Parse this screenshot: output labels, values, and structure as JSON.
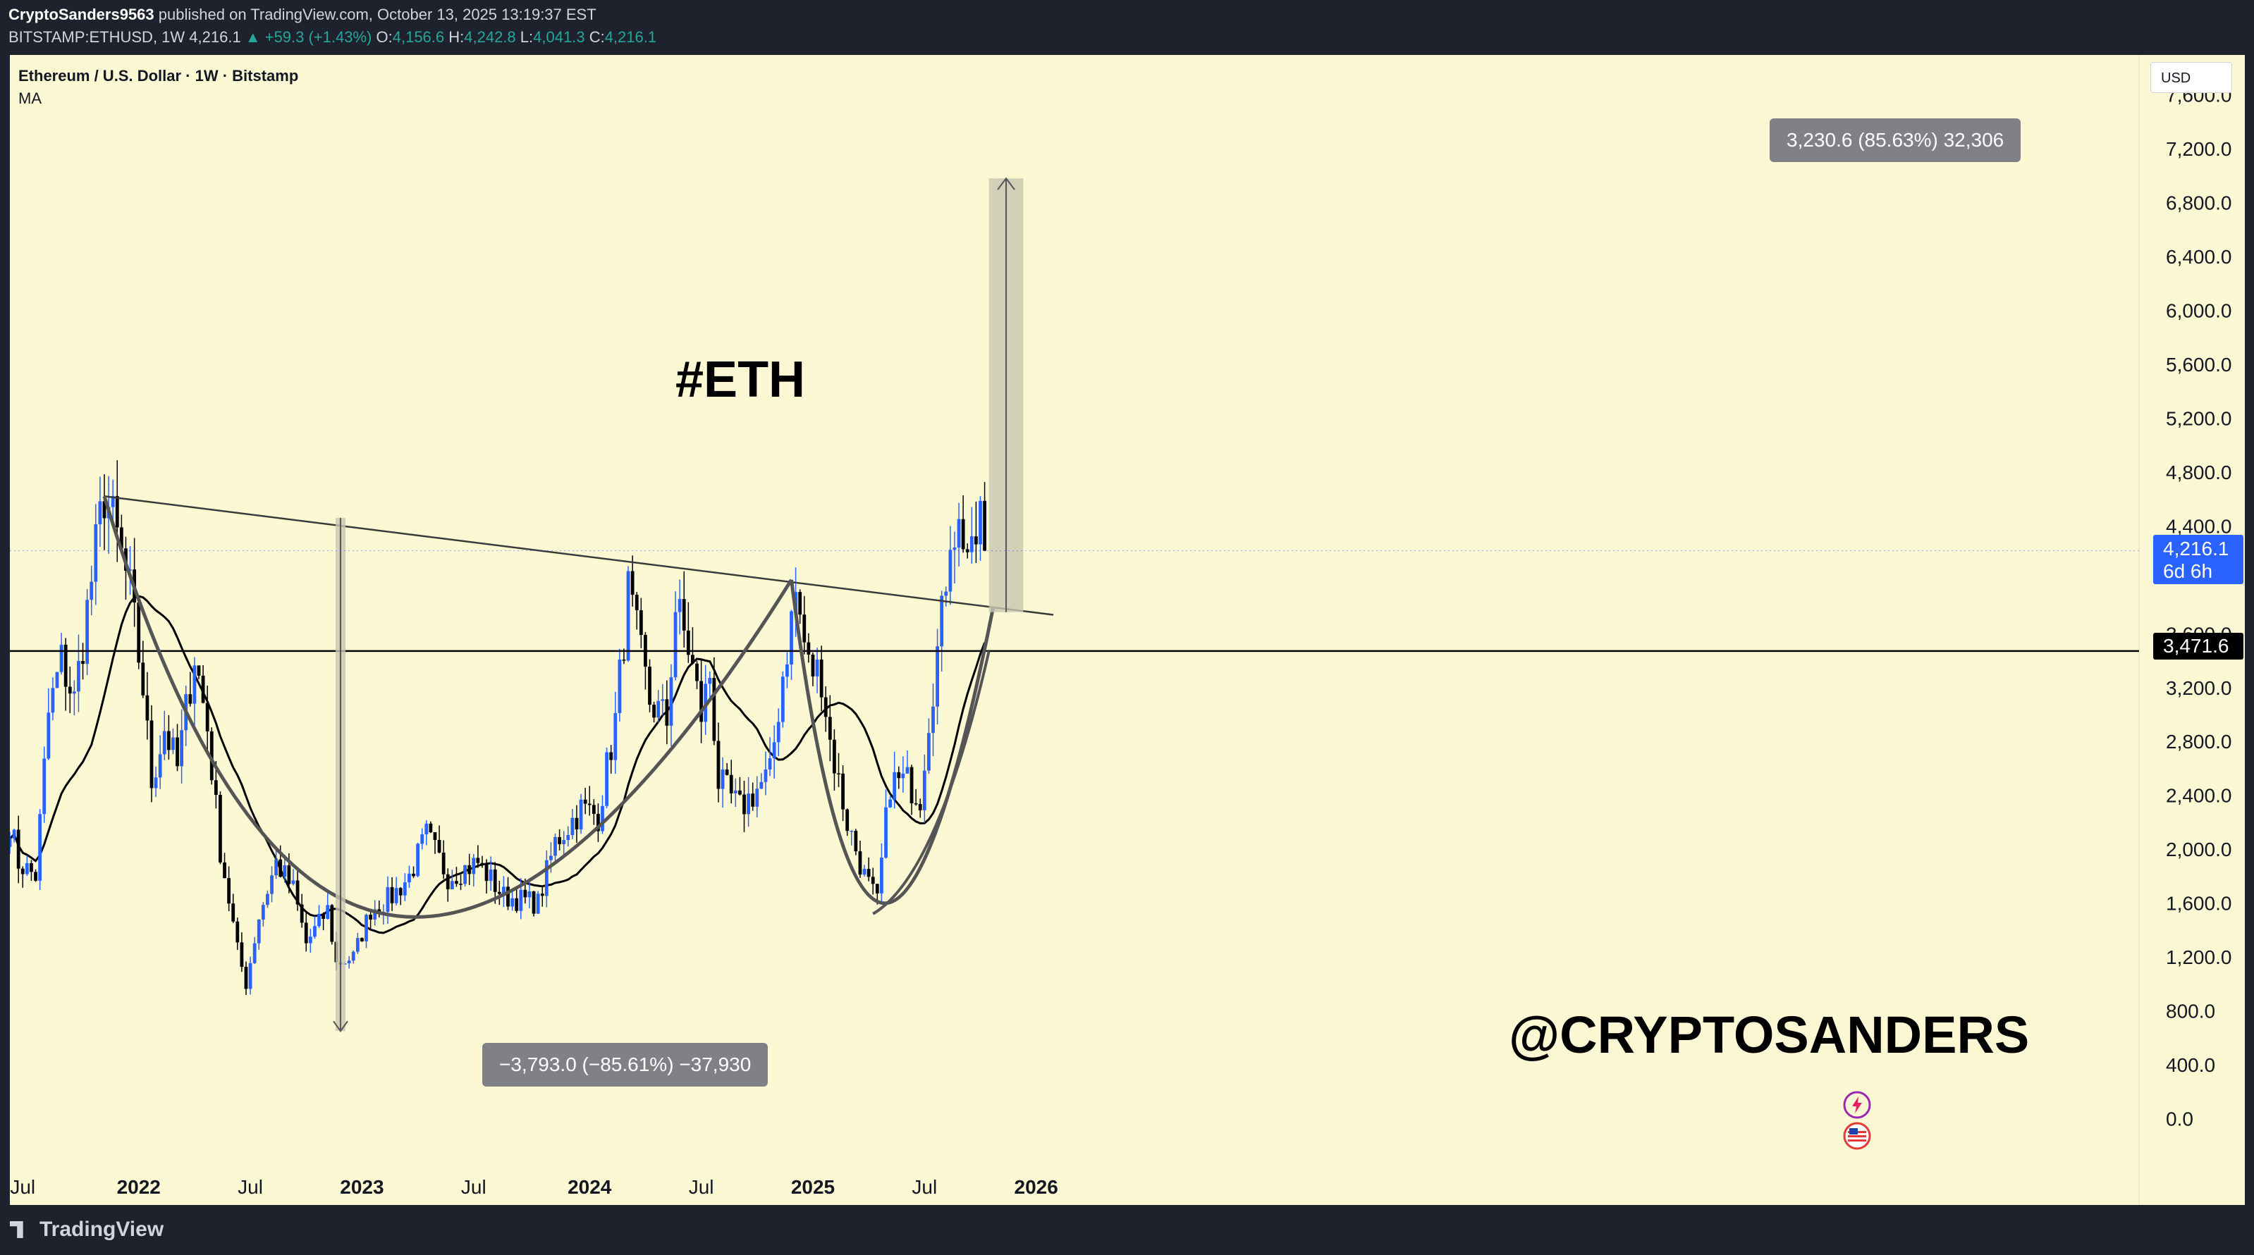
{
  "header": {
    "author": "CryptoSanders9563",
    "published": "published on TradingView.com, October 13, 2025 13:19:37 EST",
    "symbol": "BITSTAMP:ETHUSD, 1W",
    "last": "4,216.1",
    "change": "▲ +59.3 (+1.43%)",
    "o_label": "O:",
    "o": "4,156.6",
    "h_label": "H:",
    "h": "4,242.8",
    "l_label": "L:",
    "l": "4,041.3",
    "c_label": "C:",
    "c": "4,216.1"
  },
  "legend": {
    "title": "Ethereum / U.S. Dollar · 1W · Bitstamp",
    "indicator": "MA"
  },
  "annotations": {
    "eth": "#ETH",
    "handle": "@CRYPTOSANDERS",
    "measure_up": "3,230.6 (85.63%) 32,306",
    "measure_down": "−3,793.0 (−85.61%) −37,930"
  },
  "axis": {
    "currency": "USD",
    "current_price": "4,216.1",
    "countdown": "6d 6h",
    "hline_price": "3,471.6"
  },
  "footer": {
    "brand": "TradingView"
  },
  "colors": {
    "bull": "#2962ff",
    "bear": "#000000",
    "background": "#fdf8d4",
    "measure_fill": "#c8c6b0"
  },
  "chart_data": {
    "type": "candlestick",
    "timeframe": "1W",
    "x_ticks": [
      "Jul",
      "2022",
      "Jul",
      "2023",
      "Jul",
      "2024",
      "Jul",
      "2025",
      "Jul",
      "2026"
    ],
    "y_ticks": [
      "0.0",
      "400.0",
      "800.0",
      "1,200.0",
      "1,600.0",
      "2,000.0",
      "2,400.0",
      "2,800.0",
      "3,200.0",
      "3,600.0",
      "4,400.0",
      "4,800.0",
      "5,200.0",
      "5,600.0",
      "6,000.0",
      "6,400.0",
      "6,800.0",
      "7,200.0",
      "7,600.0"
    ],
    "ylim": [
      -150,
      7750
    ],
    "horizontal_line": 3471.6,
    "start_date": "2021-06-06",
    "anchors": [
      [
        "2021-06-06",
        2200
      ],
      [
        "2021-06-20",
        1900
      ],
      [
        "2021-07-18",
        1800
      ],
      [
        "2021-08-08",
        3000
      ],
      [
        "2021-08-29",
        3400
      ],
      [
        "2021-09-19",
        3100
      ],
      [
        "2021-10-17",
        4000
      ],
      [
        "2021-11-07",
        4650
      ],
      [
        "2021-11-28",
        4300
      ],
      [
        "2021-12-19",
        3900
      ],
      [
        "2022-01-09",
        3200
      ],
      [
        "2022-01-23",
        2500
      ],
      [
        "2022-02-13",
        2900
      ],
      [
        "2022-03-06",
        2600
      ],
      [
        "2022-04-03",
        3450
      ],
      [
        "2022-04-24",
        2900
      ],
      [
        "2022-05-15",
        2000
      ],
      [
        "2022-06-12",
        1250
      ],
      [
        "2022-06-26",
        1000
      ],
      [
        "2022-07-17",
        1500
      ],
      [
        "2022-08-14",
        1900
      ],
      [
        "2022-09-11",
        1700
      ],
      [
        "2022-10-02",
        1300
      ],
      [
        "2022-11-06",
        1550
      ],
      [
        "2022-11-20",
        1150
      ],
      [
        "2022-12-18",
        1200
      ],
      [
        "2023-01-15",
        1550
      ],
      [
        "2023-02-19",
        1650
      ],
      [
        "2023-03-19",
        1800
      ],
      [
        "2023-04-16",
        2100
      ],
      [
        "2023-05-21",
        1800
      ],
      [
        "2023-07-09",
        1900
      ],
      [
        "2023-08-20",
        1650
      ],
      [
        "2023-10-15",
        1600
      ],
      [
        "2023-11-12",
        2050
      ],
      [
        "2023-12-24",
        2300
      ],
      [
        "2024-01-21",
        2250
      ],
      [
        "2024-02-18",
        2950
      ],
      [
        "2024-03-10",
        3900
      ],
      [
        "2024-04-14",
        3100
      ],
      [
        "2024-05-12",
        2950
      ],
      [
        "2024-05-26",
        3800
      ],
      [
        "2024-06-16",
        3500
      ],
      [
        "2024-07-07",
        3000
      ],
      [
        "2024-07-21",
        3300
      ],
      [
        "2024-08-04",
        2500
      ],
      [
        "2024-09-08",
        2300
      ],
      [
        "2024-10-06",
        2450
      ],
      [
        "2024-10-27",
        2550
      ],
      [
        "2024-11-17",
        3300
      ],
      [
        "2024-12-08",
        3900
      ],
      [
        "2024-12-29",
        3350
      ],
      [
        "2025-01-19",
        3300
      ],
      [
        "2025-02-02",
        2800
      ],
      [
        "2025-03-02",
        2200
      ],
      [
        "2025-03-30",
        1800
      ],
      [
        "2025-04-20",
        1600
      ],
      [
        "2025-05-11",
        2500
      ],
      [
        "2025-06-08",
        2500
      ],
      [
        "2025-06-29",
        2400
      ],
      [
        "2025-07-13",
        3000
      ],
      [
        "2025-08-03",
        3700
      ],
      [
        "2025-08-17",
        4400
      ],
      [
        "2025-09-07",
        4350
      ],
      [
        "2025-09-21",
        4100
      ],
      [
        "2025-10-05",
        4500
      ],
      [
        "2025-10-12",
        4216
      ]
    ]
  }
}
